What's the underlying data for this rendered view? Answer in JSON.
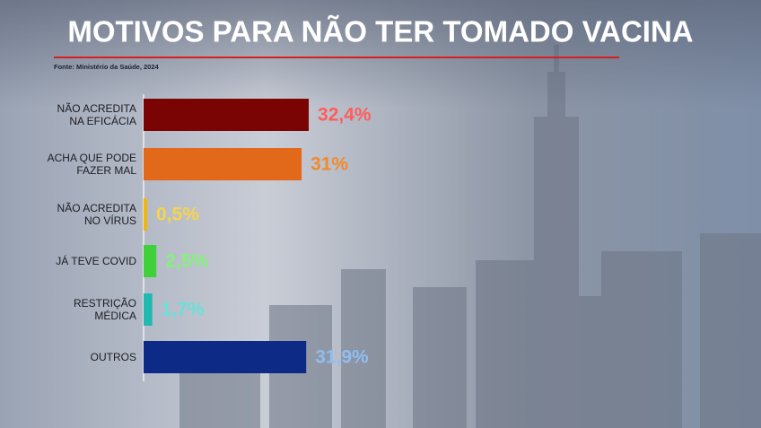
{
  "chart_data": {
    "type": "bar",
    "orientation": "horizontal",
    "title": "MOTIVOS PARA NÃO TER TOMADO VACINA",
    "source": "Fonte: Ministério da Saúde, 2024",
    "categories": [
      "NÃO ACREDITA\nNA EFICÁCIA",
      "ACHA QUE PODE\nFAZER MAL",
      "NÃO ACREDITA\nNO VÍRUS",
      "JÁ TEVE COVID",
      "RESTRIÇÃO\nMÉDICA",
      "OUTROS"
    ],
    "values": [
      32.4,
      31,
      0.5,
      2.5,
      1.7,
      31.9
    ],
    "value_labels": [
      "32,4%",
      "31%",
      "0,5%",
      "2,5%",
      "1,7%",
      "31,9%"
    ],
    "colors": [
      "#7a0303",
      "#e2691a",
      "#f2b705",
      "#3fd03a",
      "#1fb9b0",
      "#0c2a86"
    ],
    "label_colors": [
      "#ff5c5c",
      "#f28a2c",
      "#f7d54a",
      "#84f27a",
      "#66e3d9",
      "#8fbdf2"
    ]
  }
}
